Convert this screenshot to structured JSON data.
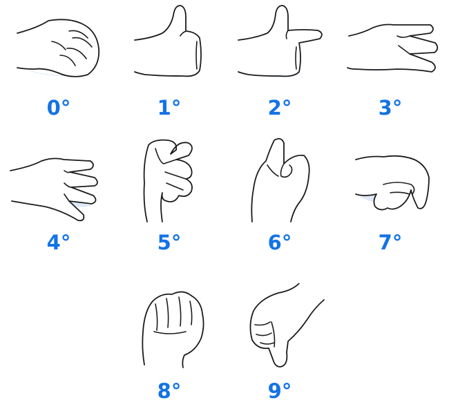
{
  "accent_color": "#1473e6",
  "gestures": [
    {
      "label": "0°",
      "icon": "hand-curled-pinch-icon"
    },
    {
      "label": "1°",
      "icon": "hand-thumb-up-icon"
    },
    {
      "label": "2°",
      "icon": "hand-thumb-index-icon"
    },
    {
      "label": "3°",
      "icon": "hand-three-fingers-icon"
    },
    {
      "label": "4°",
      "icon": "hand-four-fingers-icon"
    },
    {
      "label": "5°",
      "icon": "hand-curled-fingers-icon"
    },
    {
      "label": "6°",
      "icon": "hand-thumb-raised-fist-icon"
    },
    {
      "label": "7°",
      "icon": "hand-bent-fingers-icon"
    },
    {
      "label": "8°",
      "icon": "hand-fist-icon"
    },
    {
      "label": "9°",
      "icon": "hand-thumb-down-icon"
    }
  ]
}
